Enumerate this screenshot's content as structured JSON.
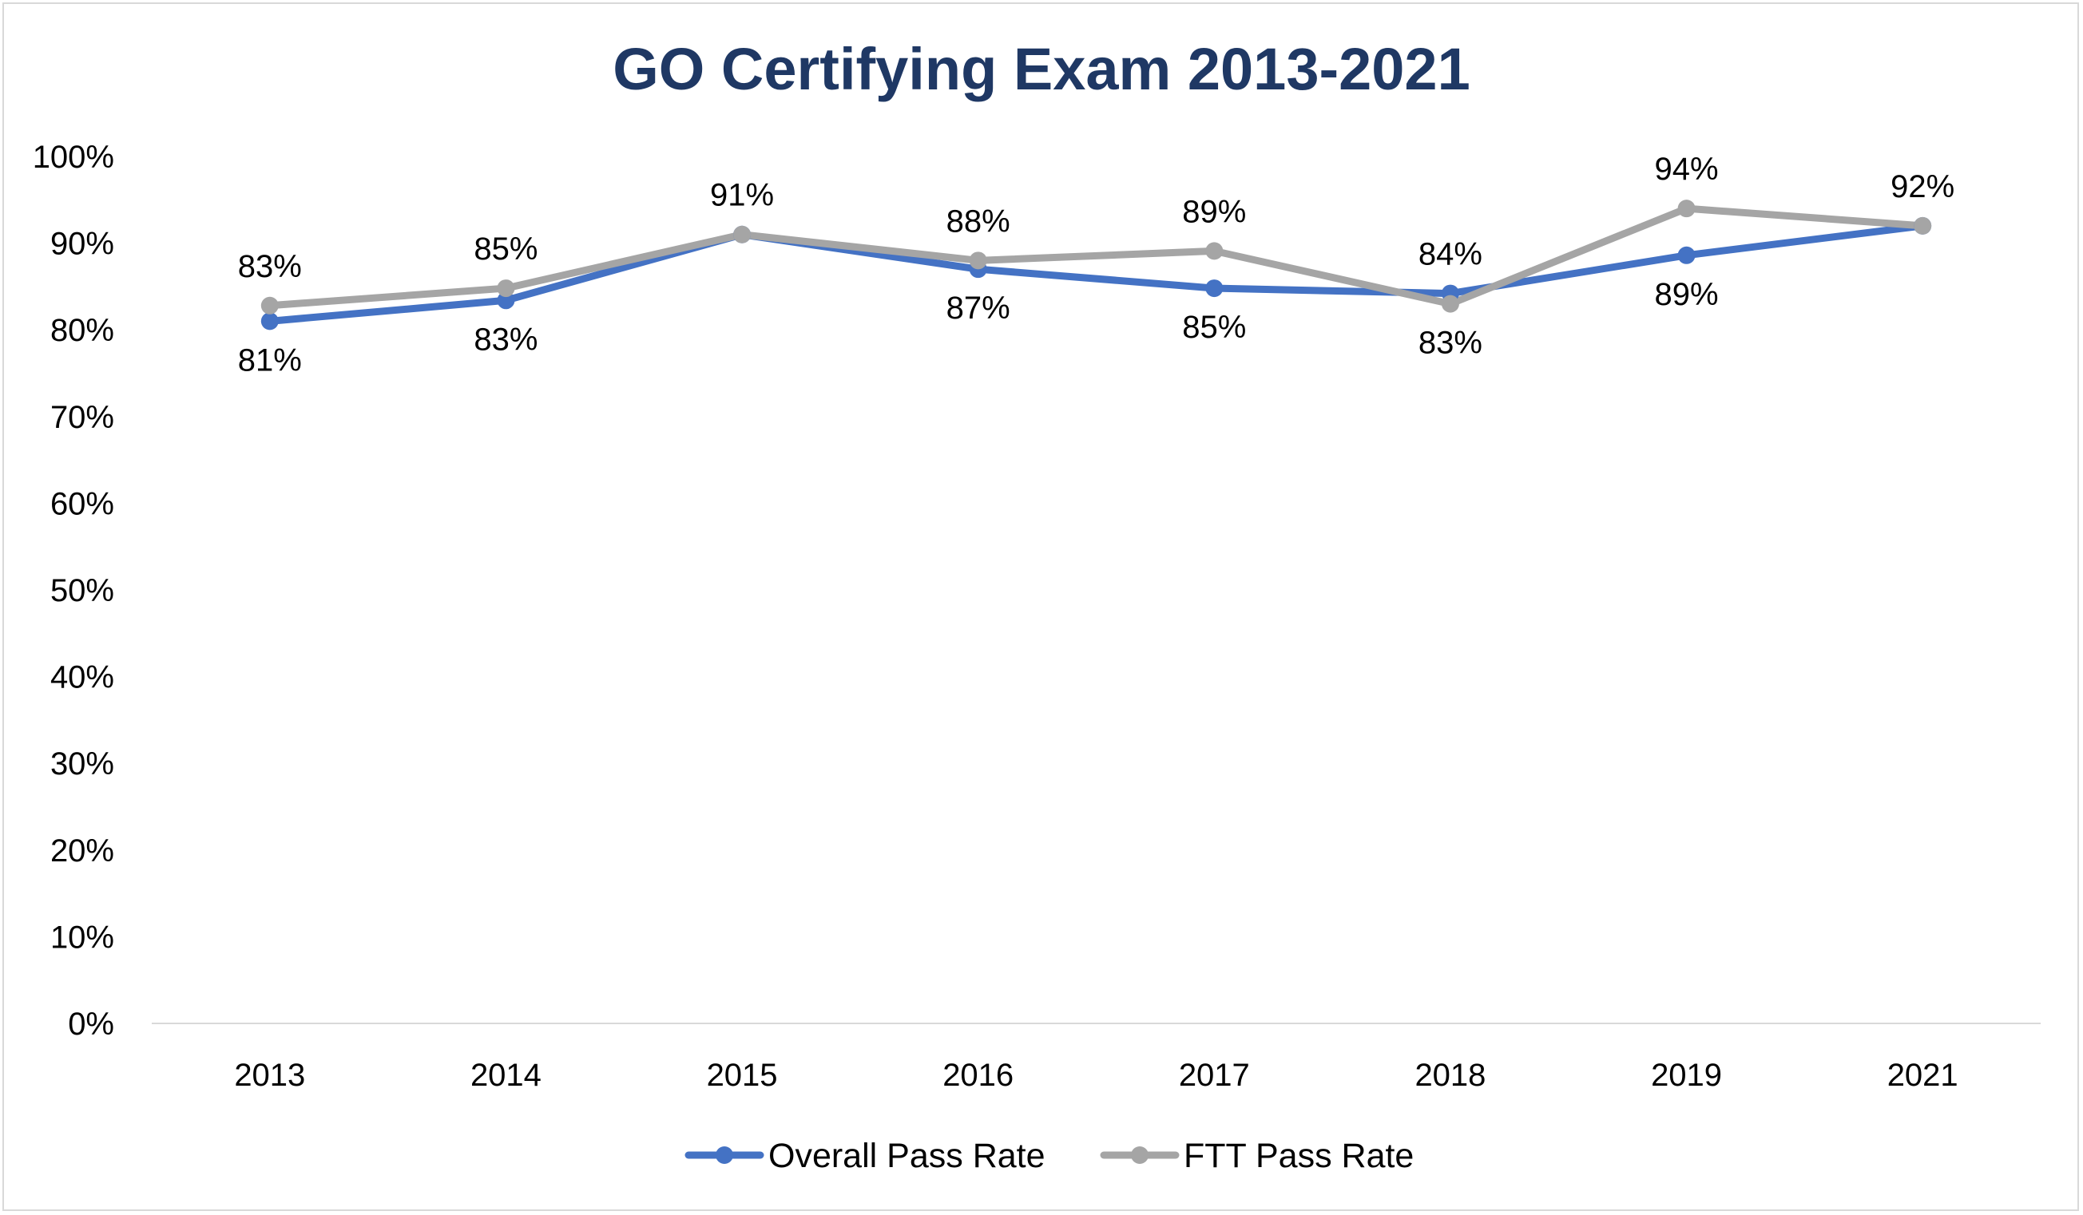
{
  "chart_data": {
    "type": "line",
    "title": "GO Certifying Exam 2013-2021",
    "xlabel": "",
    "ylabel": "",
    "categories": [
      "2013",
      "2014",
      "2015",
      "2016",
      "2017",
      "2018",
      "2019",
      "2021"
    ],
    "ylim": [
      0,
      100
    ],
    "yticks": [
      0,
      10,
      20,
      30,
      40,
      50,
      60,
      70,
      80,
      90,
      100
    ],
    "ytick_labels": [
      "0%",
      "10%",
      "20%",
      "30%",
      "40%",
      "50%",
      "60%",
      "70%",
      "80%",
      "90%",
      "100%"
    ],
    "grid": false,
    "legend_position": "bottom",
    "series": [
      {
        "name": "Overall Pass Rate",
        "color": "#4472c4",
        "values": [
          81,
          83.4,
          91,
          87,
          84.8,
          84.2,
          88.6,
          92
        ],
        "labels": [
          "81%",
          "83%",
          "",
          "87%",
          "85%",
          "",
          "89%",
          ""
        ],
        "label_position": "below"
      },
      {
        "name": "FTT Pass Rate",
        "color": "#a5a5a5",
        "values": [
          82.8,
          84.8,
          91,
          88,
          89.1,
          83,
          94,
          92
        ],
        "labels": [
          "83%",
          "85%",
          "91%",
          "88%",
          "89%",
          "83%",
          "94%",
          "92%"
        ],
        "label_position": "above",
        "label_overrides": {
          "5": "below"
        }
      }
    ],
    "extra_labels": [
      {
        "series": 0,
        "index": 5,
        "text": "84%",
        "position": "above"
      }
    ]
  }
}
